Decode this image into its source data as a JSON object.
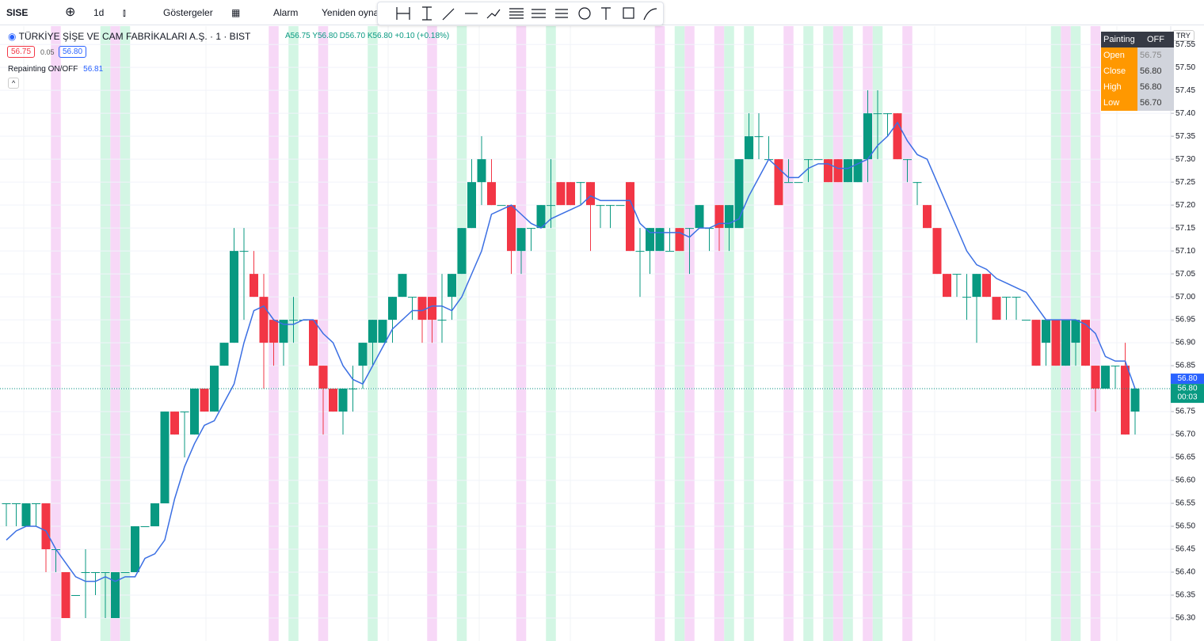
{
  "toolbar": {
    "symbol": "SISE",
    "interval": "1d",
    "indicators": "Göstergeler",
    "alert": "Alarm",
    "replay": "Yeniden oynat"
  },
  "legend": {
    "title": "TÜRKİYE ŞİŞE VE CAM FABRİKALARI A.Ş. · 1 · BIST",
    "open": "A56.75",
    "high": "Y56.80",
    "low": "D56.70",
    "close": "K56.80",
    "change": "+0.10 (+0.18%)",
    "bid": "56.75",
    "spread": "0.05",
    "ask": "56.80",
    "indicator": "Repainting ON/OFF",
    "indicator_value": "56.81"
  },
  "info_table": {
    "header": [
      "Painting",
      "OFF"
    ],
    "rows": [
      [
        "Open",
        "56.75"
      ],
      [
        "Close",
        "56.80"
      ],
      [
        "High",
        "56.80"
      ],
      [
        "Low",
        "56.70"
      ]
    ]
  },
  "currency": "TRY",
  "chart_data": {
    "type": "candlestick",
    "up_color": "#089981",
    "down_color": "#f23645",
    "ylim": [
      56.25,
      57.59
    ],
    "yticks": [
      {
        "value": 56.3,
        "label": "56.30"
      },
      56.35,
      {
        "value": 56.4,
        "label": "56.40"
      },
      56.45,
      {
        "value": 56.5,
        "label": "56.50"
      },
      56.55,
      {
        "value": 56.6,
        "label": "56.60"
      },
      56.65,
      {
        "value": 56.7,
        "label": "56.70"
      },
      56.75,
      {
        "value": 56.8,
        "label": "56.80"
      },
      56.85,
      {
        "value": 56.9,
        "label": "56.90"
      },
      56.95,
      {
        "value": 57,
        "label": "57.00"
      },
      57.05,
      {
        "value": 57.1,
        "label": "57.10"
      },
      57.15,
      {
        "value": 57.2,
        "label": "57.20"
      },
      57.25,
      {
        "value": 57.3,
        "label": "57.30"
      },
      57.35,
      {
        "value": 57.4,
        "label": "57.40"
      },
      57.45,
      {
        "value": 57.5,
        "label": "57.50"
      },
      57.55
    ],
    "grid": true,
    "ohlc": [
      [
        56.55,
        56.55,
        56.5,
        56.55
      ],
      [
        56.55,
        56.55,
        56.5,
        56.55
      ],
      [
        56.5,
        56.55,
        56.5,
        56.55
      ],
      [
        56.55,
        56.55,
        56.5,
        56.55
      ],
      [
        56.55,
        56.55,
        56.4,
        56.45
      ],
      [
        56.45,
        56.45,
        56.4,
        56.45
      ],
      [
        56.4,
        56.4,
        56.3,
        56.3
      ],
      [
        56.35,
        56.35,
        56.35,
        56.35
      ],
      [
        56.4,
        56.45,
        56.3,
        56.4
      ],
      [
        56.4,
        56.4,
        56.35,
        56.4
      ],
      [
        56.4,
        56.4,
        56.3,
        56.4
      ],
      [
        56.3,
        56.4,
        56.3,
        56.4
      ],
      [
        56.4,
        56.4,
        56.4,
        56.4
      ],
      [
        56.4,
        56.5,
        56.4,
        56.5
      ],
      [
        56.5,
        56.5,
        56.5,
        56.5
      ],
      [
        56.5,
        56.55,
        56.5,
        56.55
      ],
      [
        56.55,
        56.75,
        56.55,
        56.75
      ],
      [
        56.75,
        56.75,
        56.7,
        56.7
      ],
      [
        56.75,
        56.75,
        56.65,
        56.75
      ],
      [
        56.7,
        56.8,
        56.7,
        56.8
      ],
      [
        56.8,
        56.8,
        56.75,
        56.75
      ],
      [
        56.75,
        56.85,
        56.75,
        56.85
      ],
      [
        56.85,
        56.9,
        56.85,
        56.9
      ],
      [
        56.9,
        57.15,
        56.9,
        57.1
      ],
      [
        57.1,
        57.15,
        56.95,
        57.1
      ],
      [
        57.05,
        57.1,
        57,
        57
      ],
      [
        57,
        57.05,
        56.8,
        56.9
      ],
      [
        56.95,
        56.95,
        56.85,
        56.9
      ],
      [
        56.9,
        56.95,
        56.85,
        56.95
      ],
      [
        56.95,
        57,
        56.9,
        56.95
      ],
      [
        56.95,
        56.95,
        56.95,
        56.95
      ],
      [
        56.95,
        56.95,
        56.85,
        56.85
      ],
      [
        56.85,
        56.85,
        56.7,
        56.8
      ],
      [
        56.8,
        56.8,
        56.75,
        56.75
      ],
      [
        56.75,
        56.8,
        56.7,
        56.8
      ],
      [
        56.8,
        56.85,
        56.75,
        56.8
      ],
      [
        56.85,
        56.9,
        56.8,
        56.9
      ],
      [
        56.9,
        56.95,
        56.85,
        56.95
      ],
      [
        56.9,
        56.95,
        56.9,
        56.95
      ],
      [
        56.95,
        57,
        56.9,
        57
      ],
      [
        57,
        57.05,
        57,
        57.05
      ],
      [
        57,
        57,
        56.95,
        57
      ],
      [
        57,
        57,
        56.9,
        56.95
      ],
      [
        57,
        57,
        56.9,
        56.95
      ],
      [
        56.95,
        57.05,
        56.9,
        56.95
      ],
      [
        57,
        57.05,
        56.95,
        57.05
      ],
      [
        57.05,
        57.15,
        57.05,
        57.15
      ],
      [
        57.15,
        57.3,
        57.15,
        57.25
      ],
      [
        57.25,
        57.35,
        57.2,
        57.3
      ],
      [
        57.25,
        57.3,
        57.2,
        57.2
      ],
      [
        57.2,
        57.2,
        57.2,
        57.2
      ],
      [
        57.2,
        57.2,
        57.05,
        57.1
      ],
      [
        57.1,
        57.15,
        57.05,
        57.15
      ],
      [
        57.15,
        57.15,
        57.1,
        57.15
      ],
      [
        57.15,
        57.2,
        57.15,
        57.2
      ],
      [
        57.2,
        57.3,
        57.15,
        57.2
      ],
      [
        57.25,
        57.25,
        57.2,
        57.2
      ],
      [
        57.25,
        57.25,
        57.2,
        57.2
      ],
      [
        57.25,
        57.25,
        57.2,
        57.25
      ],
      [
        57.25,
        57.25,
        57.1,
        57.2
      ],
      [
        57.2,
        57.2,
        57.15,
        57.2
      ],
      [
        57.2,
        57.2,
        57.15,
        57.2
      ],
      [
        57.2,
        57.2,
        57.2,
        57.2
      ],
      [
        57.25,
        57.25,
        57.1,
        57.1
      ],
      [
        57.1,
        57.15,
        57,
        57.1
      ],
      [
        57.1,
        57.15,
        57.05,
        57.15
      ],
      [
        57.1,
        57.15,
        57.1,
        57.15
      ],
      [
        57.1,
        57.15,
        57.1,
        57.1
      ],
      [
        57.15,
        57.15,
        57.1,
        57.1
      ],
      [
        57.15,
        57.15,
        57.05,
        57.15
      ],
      [
        57.15,
        57.2,
        57.15,
        57.2
      ],
      [
        57.15,
        57.15,
        57.1,
        57.15
      ],
      [
        57.2,
        57.2,
        57.1,
        57.15
      ],
      [
        57.15,
        57.2,
        57.1,
        57.2
      ],
      [
        57.15,
        57.3,
        57.15,
        57.3
      ],
      [
        57.3,
        57.4,
        57.3,
        57.35
      ],
      [
        57.35,
        57.4,
        57.3,
        57.35
      ],
      [
        57.3,
        57.35,
        57.3,
        57.3
      ],
      [
        57.3,
        57.3,
        57.2,
        57.2
      ],
      [
        57.25,
        57.3,
        57.25,
        57.25
      ],
      [
        57.25,
        57.25,
        57.25,
        57.25
      ],
      [
        57.3,
        57.3,
        57.25,
        57.3
      ],
      [
        57.3,
        57.3,
        57.3,
        57.3
      ],
      [
        57.3,
        57.3,
        57.25,
        57.25
      ],
      [
        57.3,
        57.3,
        57.25,
        57.25
      ],
      [
        57.25,
        57.3,
        57.25,
        57.3
      ],
      [
        57.25,
        57.3,
        57.25,
        57.3
      ],
      [
        57.3,
        57.45,
        57.25,
        57.4
      ],
      [
        57.4,
        57.45,
        57.3,
        57.4
      ],
      [
        57.4,
        57.4,
        57.35,
        57.4
      ],
      [
        57.4,
        57.4,
        57.3,
        57.3
      ],
      [
        57.3,
        57.3,
        57.25,
        57.3
      ],
      [
        57.25,
        57.25,
        57.2,
        57.25
      ],
      [
        57.2,
        57.2,
        57.15,
        57.15
      ],
      [
        57.15,
        57.15,
        57.05,
        57.05
      ],
      [
        57.05,
        57.05,
        57,
        57
      ],
      [
        57.05,
        57.05,
        57,
        57.05
      ],
      [
        57,
        57.05,
        56.95,
        57
      ],
      [
        57,
        57.05,
        56.9,
        57.05
      ],
      [
        57.05,
        57.05,
        57,
        57
      ],
      [
        57,
        57,
        56.95,
        56.95
      ],
      [
        57,
        57,
        56.95,
        57
      ],
      [
        57,
        57,
        56.95,
        57
      ],
      [
        56.95,
        56.95,
        56.95,
        56.95
      ],
      [
        56.95,
        56.95,
        56.85,
        56.85
      ],
      [
        56.9,
        56.95,
        56.85,
        56.95
      ],
      [
        56.95,
        56.95,
        56.85,
        56.85
      ],
      [
        56.85,
        56.95,
        56.85,
        56.95
      ],
      [
        56.9,
        56.95,
        56.85,
        56.95
      ],
      [
        56.95,
        56.95,
        56.85,
        56.85
      ],
      [
        56.85,
        56.85,
        56.75,
        56.8
      ],
      [
        56.8,
        56.85,
        56.8,
        56.85
      ],
      [
        56.85,
        56.85,
        56.8,
        56.85
      ],
      [
        56.85,
        56.9,
        56.7,
        56.7
      ],
      [
        56.75,
        56.8,
        56.7,
        56.8
      ]
    ],
    "ma": {
      "color": "#3b6fe3",
      "values": [
        56.47,
        56.49,
        56.5,
        56.5,
        56.49,
        56.45,
        56.42,
        56.39,
        56.38,
        56.38,
        56.39,
        56.38,
        56.39,
        56.39,
        56.43,
        56.44,
        56.47,
        56.56,
        56.63,
        56.68,
        56.72,
        56.73,
        56.77,
        56.81,
        56.9,
        56.97,
        56.98,
        56.95,
        56.94,
        56.94,
        56.95,
        56.95,
        56.92,
        56.9,
        56.85,
        56.82,
        56.81,
        56.85,
        56.89,
        56.93,
        56.95,
        56.97,
        56.97,
        56.98,
        56.98,
        56.97,
        57,
        57.05,
        57.1,
        57.18,
        57.19,
        57.2,
        57.18,
        57.16,
        57.15,
        57.17,
        57.18,
        57.19,
        57.2,
        57.22,
        57.21,
        57.21,
        57.21,
        57.21,
        57.16,
        57.14,
        57.14,
        57.14,
        57.14,
        57.13,
        57.15,
        57.15,
        57.16,
        57.16,
        57.17,
        57.22,
        57.26,
        57.3,
        57.28,
        57.26,
        57.26,
        57.28,
        57.29,
        57.29,
        57.28,
        57.28,
        57.29,
        57.3,
        57.33,
        57.35,
        57.38,
        57.34,
        57.31,
        57.3,
        57.25,
        57.2,
        57.15,
        57.1,
        57.07,
        57.06,
        57.04,
        57.03,
        57.02,
        57.01,
        56.98,
        56.95,
        56.95,
        56.95,
        56.95,
        56.94,
        56.92,
        56.87,
        56.86,
        56.86,
        56.8
      ]
    },
    "highlights": {
      "pink": {
        "color": "#f7d8f7",
        "indices": [
          5,
          11,
          27,
          32,
          43,
          52,
          66,
          69,
          72,
          79,
          84,
          87,
          91,
          107,
          110
        ]
      },
      "green": {
        "color": "#d3f6e4",
        "indices": [
          10,
          12,
          29,
          37,
          46,
          55,
          68,
          73,
          75,
          81,
          83,
          85,
          88,
          106,
          108
        ]
      }
    },
    "price_line": {
      "value": 56.8,
      "label": "56.80"
    },
    "countdown": "00:03"
  }
}
